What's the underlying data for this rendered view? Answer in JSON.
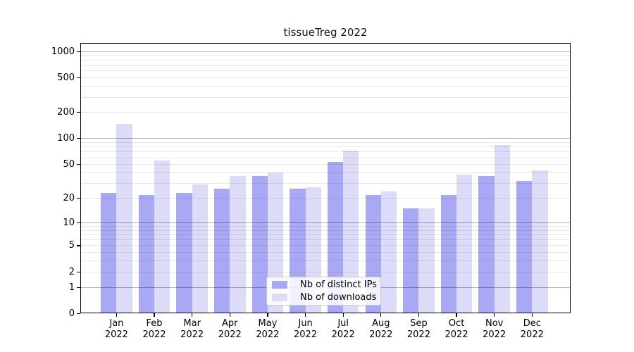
{
  "chart_data": {
    "type": "bar",
    "title": "tissueTreg 2022",
    "categories": [
      "Jan",
      "Feb",
      "Mar",
      "Apr",
      "May",
      "Jun",
      "Jul",
      "Aug",
      "Sep",
      "Oct",
      "Nov",
      "Dec"
    ],
    "category_year_label": "2022",
    "series": [
      {
        "name": "Nb of distinct IPs",
        "color": "#a8a8f5",
        "values": [
          23,
          22,
          23,
          26,
          37,
          26,
          54,
          22,
          15,
          22,
          37,
          32
        ]
      },
      {
        "name": "Nb of downloads",
        "color": "#dcdcf8",
        "values": [
          148,
          56,
          29,
          37,
          40,
          27,
          72,
          24,
          15,
          38,
          85,
          43
        ]
      }
    ],
    "y_axis": {
      "scale": "log1p",
      "ticks": [
        0,
        1,
        2,
        5,
        10,
        20,
        50,
        100,
        200,
        500,
        1000
      ],
      "major_grid_at": [
        1,
        10,
        100,
        1000
      ]
    },
    "x_axis": {
      "label_line1": "month",
      "label_line2_shared": "2022"
    },
    "grid": "horizontal minor+major, drawn over bars",
    "legend_position": "bottom-center",
    "style_colors": {
      "major_grid": "rgba(0,0,0,0.30)",
      "minor_grid": "rgba(0,0,0,0.09)",
      "frame": "#000000",
      "background": "#ffffff"
    }
  }
}
